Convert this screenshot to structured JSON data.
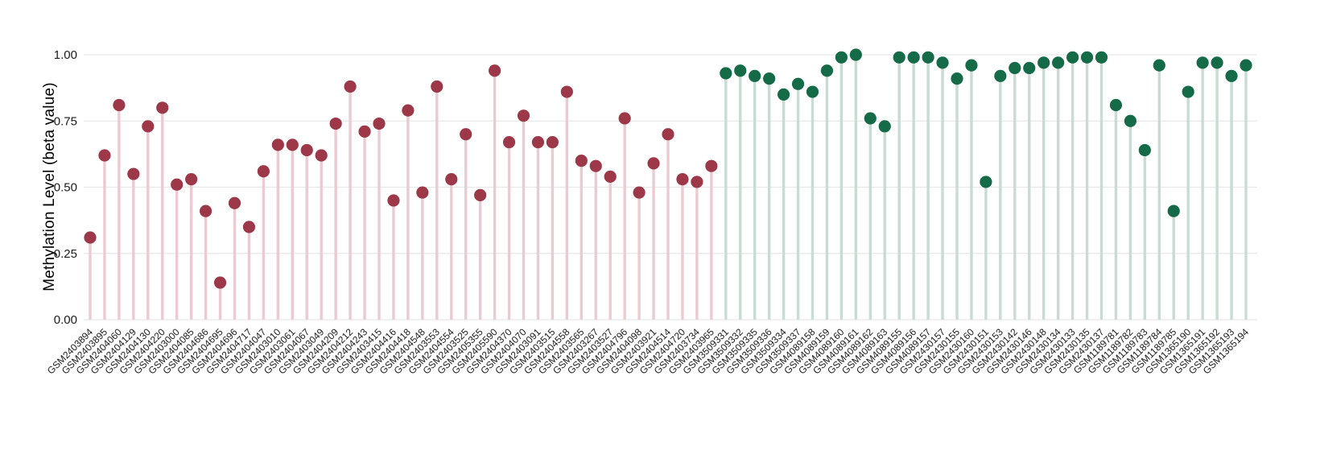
{
  "chart": {
    "ylabel": "Methylation Level (beta value)"
  },
  "chart_data": {
    "type": "lollipop",
    "title": "",
    "xlabel": "",
    "ylabel": "Methylation Level (beta value)",
    "ylim": [
      0,
      1.0
    ],
    "yticks": [
      0,
      0.25,
      0.5,
      0.75,
      1.0
    ],
    "ytick_labels": [
      "0.00",
      "0.25",
      "0.50",
      "0.75",
      "1.00"
    ],
    "grid": true,
    "legend": "none",
    "background_color": "#FFFFFF",
    "grid_color": "#E7E7E7",
    "text_color": "#1A1A1A",
    "series": [
      {
        "name": "maroon-group",
        "dot_color": "#9C3848",
        "stem_color": "#EBCBD2",
        "samples": [
          "GSM2403894",
          "GSM2403895",
          "GSM2404060",
          "GSM2404129",
          "GSM2404130",
          "GSM2404220",
          "GSM2403000",
          "GSM2404085",
          "GSM2404686",
          "GSM2404695",
          "GSM2404696",
          "GSM2404717",
          "GSM2404047",
          "GSM2403010",
          "GSM2403061",
          "GSM2404067",
          "GSM2403049",
          "GSM2404209",
          "GSM2404212",
          "GSM2404243",
          "GSM2403415",
          "GSM2404416",
          "GSM2404418",
          "GSM2404548",
          "GSM2403553",
          "GSM2404554",
          "GSM2403525",
          "GSM2405355",
          "GSM2405590",
          "GSM2404370",
          "GSM2404070",
          "GSM2403091",
          "GSM2403515",
          "GSM2404558",
          "GSM2403565",
          "GSM2403267",
          "GSM2403527",
          "GSM2404796",
          "GSM2404098",
          "GSM2403921",
          "GSM2404514",
          "GSM2404720",
          "GSM2403734",
          "GSM2403965"
        ],
        "values": [
          0.31,
          0.62,
          0.81,
          0.55,
          0.73,
          0.8,
          0.51,
          0.53,
          0.41,
          0.14,
          0.44,
          0.35,
          0.56,
          0.66,
          0.66,
          0.64,
          0.62,
          0.74,
          0.88,
          0.71,
          0.74,
          0.45,
          0.79,
          0.48,
          0.88,
          0.53,
          0.7,
          0.47,
          0.94,
          0.67,
          0.77,
          0.67,
          0.67,
          0.86,
          0.6,
          0.58,
          0.54,
          0.76,
          0.48,
          0.59,
          0.7,
          0.53,
          0.52,
          0.58
        ]
      },
      {
        "name": "green-group",
        "dot_color": "#156B48",
        "stem_color": "#C8DCD3",
        "samples": [
          "GSM3509331",
          "GSM3509332",
          "GSM3509335",
          "GSM3509336",
          "GSM3509334",
          "GSM3509337",
          "GSM4089158",
          "GSM4089159",
          "GSM4089160",
          "GSM4089161",
          "GSM4089162",
          "GSM4089163",
          "GSM4089155",
          "GSM4089156",
          "GSM4089157",
          "GSM2430157",
          "GSM2430155",
          "GSM2430160",
          "GSM2430151",
          "GSM2430153",
          "GSM2430142",
          "GSM2430146",
          "GSM2430148",
          "GSM2430134",
          "GSM2430133",
          "GSM2430135",
          "GSM2430137",
          "GSM1189781",
          "GSM1189782",
          "GSM1189783",
          "GSM1189784",
          "GSM1189785",
          "GSM1365190",
          "GSM1365191",
          "GSM1365192",
          "GSM1365193",
          "GSM1365194"
        ],
        "values": [
          0.93,
          0.94,
          0.92,
          0.91,
          0.85,
          0.89,
          0.86,
          0.94,
          0.99,
          1.0,
          0.76,
          0.73,
          0.99,
          0.99,
          0.99,
          0.97,
          0.91,
          0.96,
          0.52,
          0.92,
          0.95,
          0.95,
          0.97,
          0.97,
          0.99,
          0.99,
          0.99,
          0.81,
          0.75,
          0.64,
          0.96,
          0.41,
          0.86,
          0.97,
          0.97,
          0.92,
          0.96
        ]
      }
    ]
  }
}
